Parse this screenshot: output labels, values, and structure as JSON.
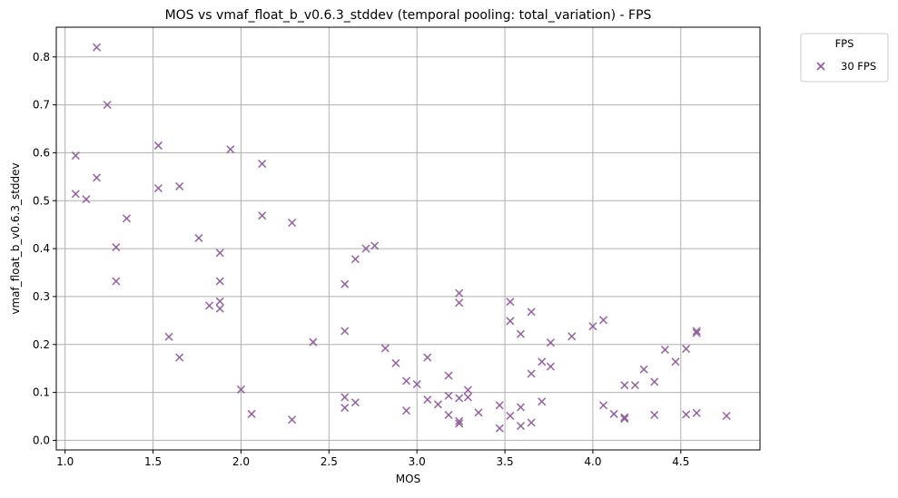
{
  "chart_data": {
    "type": "scatter",
    "title": "MOS vs vmaf_float_b_v0.6.3_stddev (temporal pooling: total_variation) - FPS",
    "xlabel": "MOS",
    "ylabel": "vmaf_float_b_v0.6.3_stddev",
    "xlim": [
      0.95,
      4.95
    ],
    "ylim": [
      -0.02,
      0.862
    ],
    "xticks": [
      1.0,
      1.5,
      2.0,
      2.5,
      3.0,
      3.5,
      4.0,
      4.5
    ],
    "xtick_labels": [
      "1.0",
      "1.5",
      "2.0",
      "2.5",
      "3.0",
      "3.5",
      "4.0",
      "4.5"
    ],
    "yticks": [
      0.0,
      0.1,
      0.2,
      0.3,
      0.4,
      0.5,
      0.6,
      0.7,
      0.8
    ],
    "ytick_labels": [
      "0.0",
      "0.1",
      "0.2",
      "0.3",
      "0.4",
      "0.5",
      "0.6",
      "0.7",
      "0.8"
    ],
    "grid": true,
    "marker": "x",
    "legend": {
      "title": "FPS",
      "placement": "outside-top-right"
    },
    "series": [
      {
        "name": "30 FPS",
        "color": "#8e5b99",
        "points": [
          [
            1.06,
            0.594
          ],
          [
            1.06,
            0.514
          ],
          [
            1.12,
            0.503
          ],
          [
            1.18,
            0.82
          ],
          [
            1.18,
            0.548
          ],
          [
            1.24,
            0.7
          ],
          [
            1.29,
            0.403
          ],
          [
            1.29,
            0.332
          ],
          [
            1.35,
            0.463
          ],
          [
            1.53,
            0.615
          ],
          [
            1.53,
            0.526
          ],
          [
            1.59,
            0.216
          ],
          [
            1.65,
            0.53
          ],
          [
            1.65,
            0.173
          ],
          [
            1.76,
            0.422
          ],
          [
            1.82,
            0.281
          ],
          [
            1.88,
            0.391
          ],
          [
            1.88,
            0.332
          ],
          [
            1.88,
            0.29
          ],
          [
            1.88,
            0.275
          ],
          [
            1.94,
            0.607
          ],
          [
            2.0,
            0.106
          ],
          [
            2.06,
            0.055
          ],
          [
            2.12,
            0.577
          ],
          [
            2.12,
            0.469
          ],
          [
            2.29,
            0.454
          ],
          [
            2.29,
            0.043
          ],
          [
            2.41,
            0.205
          ],
          [
            2.59,
            0.326
          ],
          [
            2.59,
            0.228
          ],
          [
            2.59,
            0.09
          ],
          [
            2.59,
            0.068
          ],
          [
            2.65,
            0.378
          ],
          [
            2.65,
            0.079
          ],
          [
            2.71,
            0.4
          ],
          [
            2.76,
            0.406
          ],
          [
            2.82,
            0.192
          ],
          [
            2.88,
            0.161
          ],
          [
            2.94,
            0.124
          ],
          [
            2.94,
            0.062
          ],
          [
            3.0,
            0.117
          ],
          [
            3.06,
            0.173
          ],
          [
            3.06,
            0.085
          ],
          [
            3.12,
            0.075
          ],
          [
            3.18,
            0.135
          ],
          [
            3.18,
            0.093
          ],
          [
            3.18,
            0.053
          ],
          [
            3.24,
            0.307
          ],
          [
            3.24,
            0.287
          ],
          [
            3.24,
            0.088
          ],
          [
            3.24,
            0.04
          ],
          [
            3.24,
            0.035
          ],
          [
            3.29,
            0.105
          ],
          [
            3.29,
            0.09
          ],
          [
            3.35,
            0.058
          ],
          [
            3.47,
            0.073
          ],
          [
            3.47,
            0.025
          ],
          [
            3.53,
            0.289
          ],
          [
            3.53,
            0.249
          ],
          [
            3.53,
            0.051
          ],
          [
            3.59,
            0.222
          ],
          [
            3.59,
            0.069
          ],
          [
            3.59,
            0.03
          ],
          [
            3.65,
            0.268
          ],
          [
            3.65,
            0.139
          ],
          [
            3.65,
            0.037
          ],
          [
            3.71,
            0.164
          ],
          [
            3.71,
            0.081
          ],
          [
            3.76,
            0.204
          ],
          [
            3.76,
            0.154
          ],
          [
            3.88,
            0.217
          ],
          [
            4.0,
            0.238
          ],
          [
            4.06,
            0.251
          ],
          [
            4.06,
            0.073
          ],
          [
            4.12,
            0.055
          ],
          [
            4.18,
            0.115
          ],
          [
            4.18,
            0.048
          ],
          [
            4.18,
            0.045
          ],
          [
            4.24,
            0.115
          ],
          [
            4.29,
            0.148
          ],
          [
            4.35,
            0.122
          ],
          [
            4.35,
            0.053
          ],
          [
            4.41,
            0.189
          ],
          [
            4.47,
            0.164
          ],
          [
            4.53,
            0.191
          ],
          [
            4.53,
            0.054
          ],
          [
            4.59,
            0.228
          ],
          [
            4.59,
            0.224
          ],
          [
            4.59,
            0.057
          ],
          [
            4.76,
            0.051
          ]
        ]
      }
    ]
  }
}
